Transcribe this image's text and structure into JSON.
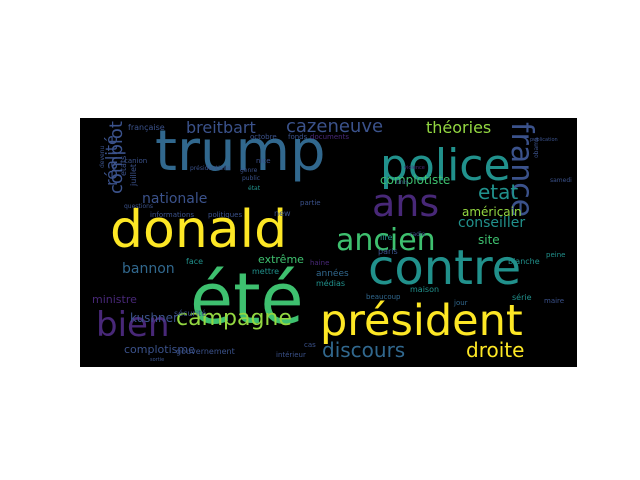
{
  "palette": {
    "background": "#000000",
    "yellow": "#fde725",
    "green": "#3ec06f",
    "lime": "#93d741",
    "teal": "#21918c",
    "blue": "#31688e",
    "indigo": "#3b528b",
    "purple": "#482878",
    "dark": "#440154"
  },
  "words": [
    {
      "text": "trump",
      "size": 1.0,
      "color": "blue"
    },
    {
      "text": "été",
      "size": 0.93,
      "color": "green"
    },
    {
      "text": "donald",
      "size": 0.84,
      "color": "yellow"
    },
    {
      "text": "contre",
      "size": 0.82,
      "color": "teal"
    },
    {
      "text": "président",
      "size": 0.74,
      "color": "yellow"
    },
    {
      "text": "police",
      "size": 0.68,
      "color": "teal"
    },
    {
      "text": "ans",
      "size": 0.62,
      "color": "purple"
    },
    {
      "text": "ancien",
      "size": 0.58,
      "color": "green"
    },
    {
      "text": "bien",
      "size": 0.56,
      "color": "purple"
    },
    {
      "text": "france",
      "size": 0.5,
      "color": "indigo"
    },
    {
      "text": "campagne",
      "size": 0.4,
      "color": "lime"
    },
    {
      "text": "discours",
      "size": 0.34,
      "color": "blue"
    },
    {
      "text": "droite",
      "size": 0.34,
      "color": "yellow"
    },
    {
      "text": "cazeneuve",
      "size": 0.3,
      "color": "indigo"
    },
    {
      "text": "etat",
      "size": 0.3,
      "color": "teal"
    },
    {
      "text": "breitbart",
      "size": 0.28,
      "color": "indigo"
    },
    {
      "text": "théories",
      "size": 0.28,
      "color": "lime"
    },
    {
      "text": "complot",
      "size": 0.3,
      "color": "indigo"
    },
    {
      "text": "réalité",
      "size": 0.28,
      "color": "indigo"
    },
    {
      "text": "bannon",
      "size": 0.24,
      "color": "blue"
    },
    {
      "text": "nationale",
      "size": 0.24,
      "color": "indigo"
    },
    {
      "text": "complotiste",
      "size": 0.2,
      "color": "green"
    },
    {
      "text": "conseiller",
      "size": 0.22,
      "color": "teal"
    },
    {
      "text": "site",
      "size": 0.2,
      "color": "green"
    },
    {
      "text": "américain",
      "size": 0.2,
      "color": "lime"
    },
    {
      "text": "kushner",
      "size": 0.2,
      "color": "indigo"
    },
    {
      "text": "complotisme",
      "size": 0.2,
      "color": "indigo"
    },
    {
      "text": "ministre",
      "size": 0.18,
      "color": "purple"
    },
    {
      "text": "extrême",
      "size": 0.18,
      "color": "green"
    },
    {
      "text": "années",
      "size": 0.15,
      "color": "blue"
    },
    {
      "text": "sécurité",
      "size": 0.12,
      "color": "indigo"
    },
    {
      "text": "gouvernement",
      "size": 0.12,
      "color": "indigo"
    },
    {
      "text": "paris",
      "size": 0.12,
      "color": "indigo"
    },
    {
      "text": "lire",
      "size": 0.11,
      "color": "teal"
    },
    {
      "text": "blanche",
      "size": 0.11,
      "color": "teal"
    },
    {
      "text": "peine",
      "size": 0.11,
      "color": "teal"
    },
    {
      "text": "maison",
      "size": 0.11,
      "color": "teal"
    },
    {
      "text": "médias",
      "size": 0.11,
      "color": "teal"
    },
    {
      "text": "beaucoup",
      "size": 0.11,
      "color": "blue"
    },
    {
      "text": "jour",
      "size": 0.11,
      "color": "blue"
    },
    {
      "text": "série",
      "size": 0.11,
      "color": "teal"
    },
    {
      "text": "intérieur",
      "size": 0.1,
      "color": "indigo"
    },
    {
      "text": "cas",
      "size": 0.1,
      "color": "indigo"
    },
    {
      "text": "mettre",
      "size": 0.12,
      "color": "teal"
    },
    {
      "text": "face",
      "size": 0.12,
      "color": "teal"
    },
    {
      "text": "questions",
      "size": 0.1,
      "color": "indigo"
    },
    {
      "text": "informations",
      "size": 0.1,
      "color": "indigo"
    },
    {
      "text": "politiques",
      "size": 0.1,
      "color": "indigo"
    },
    {
      "text": "octobre",
      "size": 0.11,
      "color": "indigo"
    },
    {
      "text": "fonds",
      "size": 0.1,
      "color": "indigo"
    },
    {
      "text": "documents",
      "size": 0.1,
      "color": "purple"
    },
    {
      "text": "française",
      "size": 0.11,
      "color": "indigo"
    },
    {
      "text": "canion",
      "size": 0.1,
      "color": "indigo"
    },
    {
      "text": "devenu",
      "size": 0.1,
      "color": "indigo"
    },
    {
      "text": "juillet",
      "size": 0.11,
      "color": "indigo"
    },
    {
      "text": "etats",
      "size": 0.12,
      "color": "indigo"
    },
    {
      "text": "nice",
      "size": 0.11,
      "color": "indigo"
    },
    {
      "text": "état",
      "size": 0.1,
      "color": "teal"
    },
    {
      "text": "genre",
      "size": 0.1,
      "color": "indigo"
    },
    {
      "text": "public",
      "size": 0.1,
      "color": "indigo"
    },
    {
      "text": "partie",
      "size": 0.1,
      "color": "indigo"
    },
    {
      "text": "new",
      "size": 0.11,
      "color": "indigo"
    },
    {
      "text": "radio",
      "size": 0.09,
      "color": "indigo"
    },
    {
      "text": "unis",
      "size": 0.1,
      "color": "indigo"
    },
    {
      "text": "haine",
      "size": 0.1,
      "color": "purple"
    },
    {
      "text": "maire",
      "size": 0.1,
      "color": "indigo"
    },
    {
      "text": "samedi",
      "size": 0.09,
      "color": "indigo"
    },
    {
      "text": "obama",
      "size": 0.1,
      "color": "indigo"
    },
    {
      "text": "publication",
      "size": 0.08,
      "color": "indigo"
    },
    {
      "text": "présidentielle",
      "size": 0.09,
      "color": "indigo"
    },
    {
      "text": "sortie",
      "size": 0.08,
      "color": "indigo"
    },
    {
      "text": "violence",
      "size": 0.08,
      "color": "purple"
    }
  ]
}
